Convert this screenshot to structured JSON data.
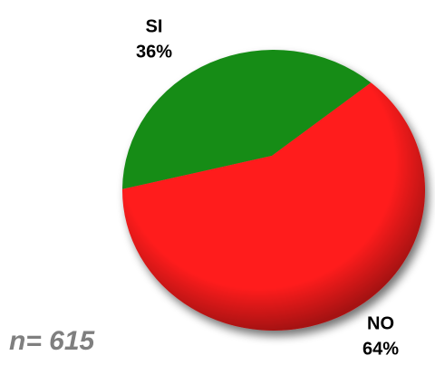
{
  "chart_data": {
    "type": "pie",
    "categories": [
      "SI",
      "NO"
    ],
    "values": [
      36,
      64
    ],
    "value_labels": [
      "36%",
      "64%"
    ],
    "colors": [
      "#168c16",
      "#ff1a1a"
    ],
    "annotation": "n= 615"
  }
}
